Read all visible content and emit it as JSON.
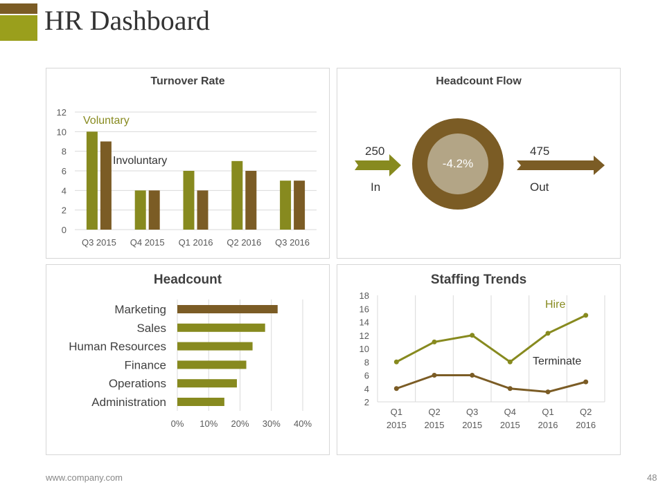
{
  "header": {
    "title": "HR Dashboard"
  },
  "footer": {
    "url": "www.company.com",
    "page": "48"
  },
  "colors": {
    "green": "#878a1f",
    "brown": "#7b5c25",
    "circle_inner": "#b3a586"
  },
  "headcount_flow": {
    "title": "Headcount Flow",
    "in_value": "250",
    "in_label": "In",
    "out_value": "475",
    "out_label": "Out",
    "change": "-4.2%"
  },
  "chart_data": [
    {
      "type": "bar",
      "title": "Turnover Rate",
      "categories": [
        "Q3 2015",
        "Q4 2015",
        "Q1 2016",
        "Q2 2016",
        "Q3 2016"
      ],
      "series": [
        {
          "name": "Voluntary",
          "values": [
            10,
            4,
            6,
            7,
            5
          ]
        },
        {
          "name": "Involuntary",
          "values": [
            9,
            4,
            4,
            6,
            5
          ]
        }
      ],
      "ylim": [
        0,
        12
      ],
      "yticks": [
        "0",
        "2",
        "4",
        "6",
        "8",
        "10",
        "12"
      ],
      "grid": true
    },
    {
      "type": "bar",
      "orientation": "horizontal",
      "title": "Headcount",
      "categories": [
        "Marketing",
        "Sales",
        "Human Resources",
        "Finance",
        "Operations",
        "Administration"
      ],
      "values": [
        32,
        28,
        24,
        22,
        19,
        15
      ],
      "xlim": [
        0,
        40
      ],
      "xticks": [
        "0%",
        "10%",
        "20%",
        "30%",
        "40%"
      ],
      "grid": true
    },
    {
      "type": "line",
      "title": "Staffing Trends",
      "categories": [
        [
          "Q1",
          "2015"
        ],
        [
          "Q2",
          "2015"
        ],
        [
          "Q3",
          "2015"
        ],
        [
          "Q4",
          "2015"
        ],
        [
          "Q1",
          "2016"
        ],
        [
          "Q2",
          "2016"
        ]
      ],
      "series": [
        {
          "name": "Hire",
          "values": [
            8,
            11,
            12,
            8,
            12.3,
            15
          ]
        },
        {
          "name": "Terminate",
          "values": [
            4,
            6,
            6,
            4,
            3.5,
            5
          ]
        }
      ],
      "ylim": [
        2,
        18
      ],
      "yticks": [
        "2",
        "4",
        "6",
        "8",
        "10",
        "12",
        "14",
        "16",
        "18"
      ],
      "grid": true
    }
  ]
}
